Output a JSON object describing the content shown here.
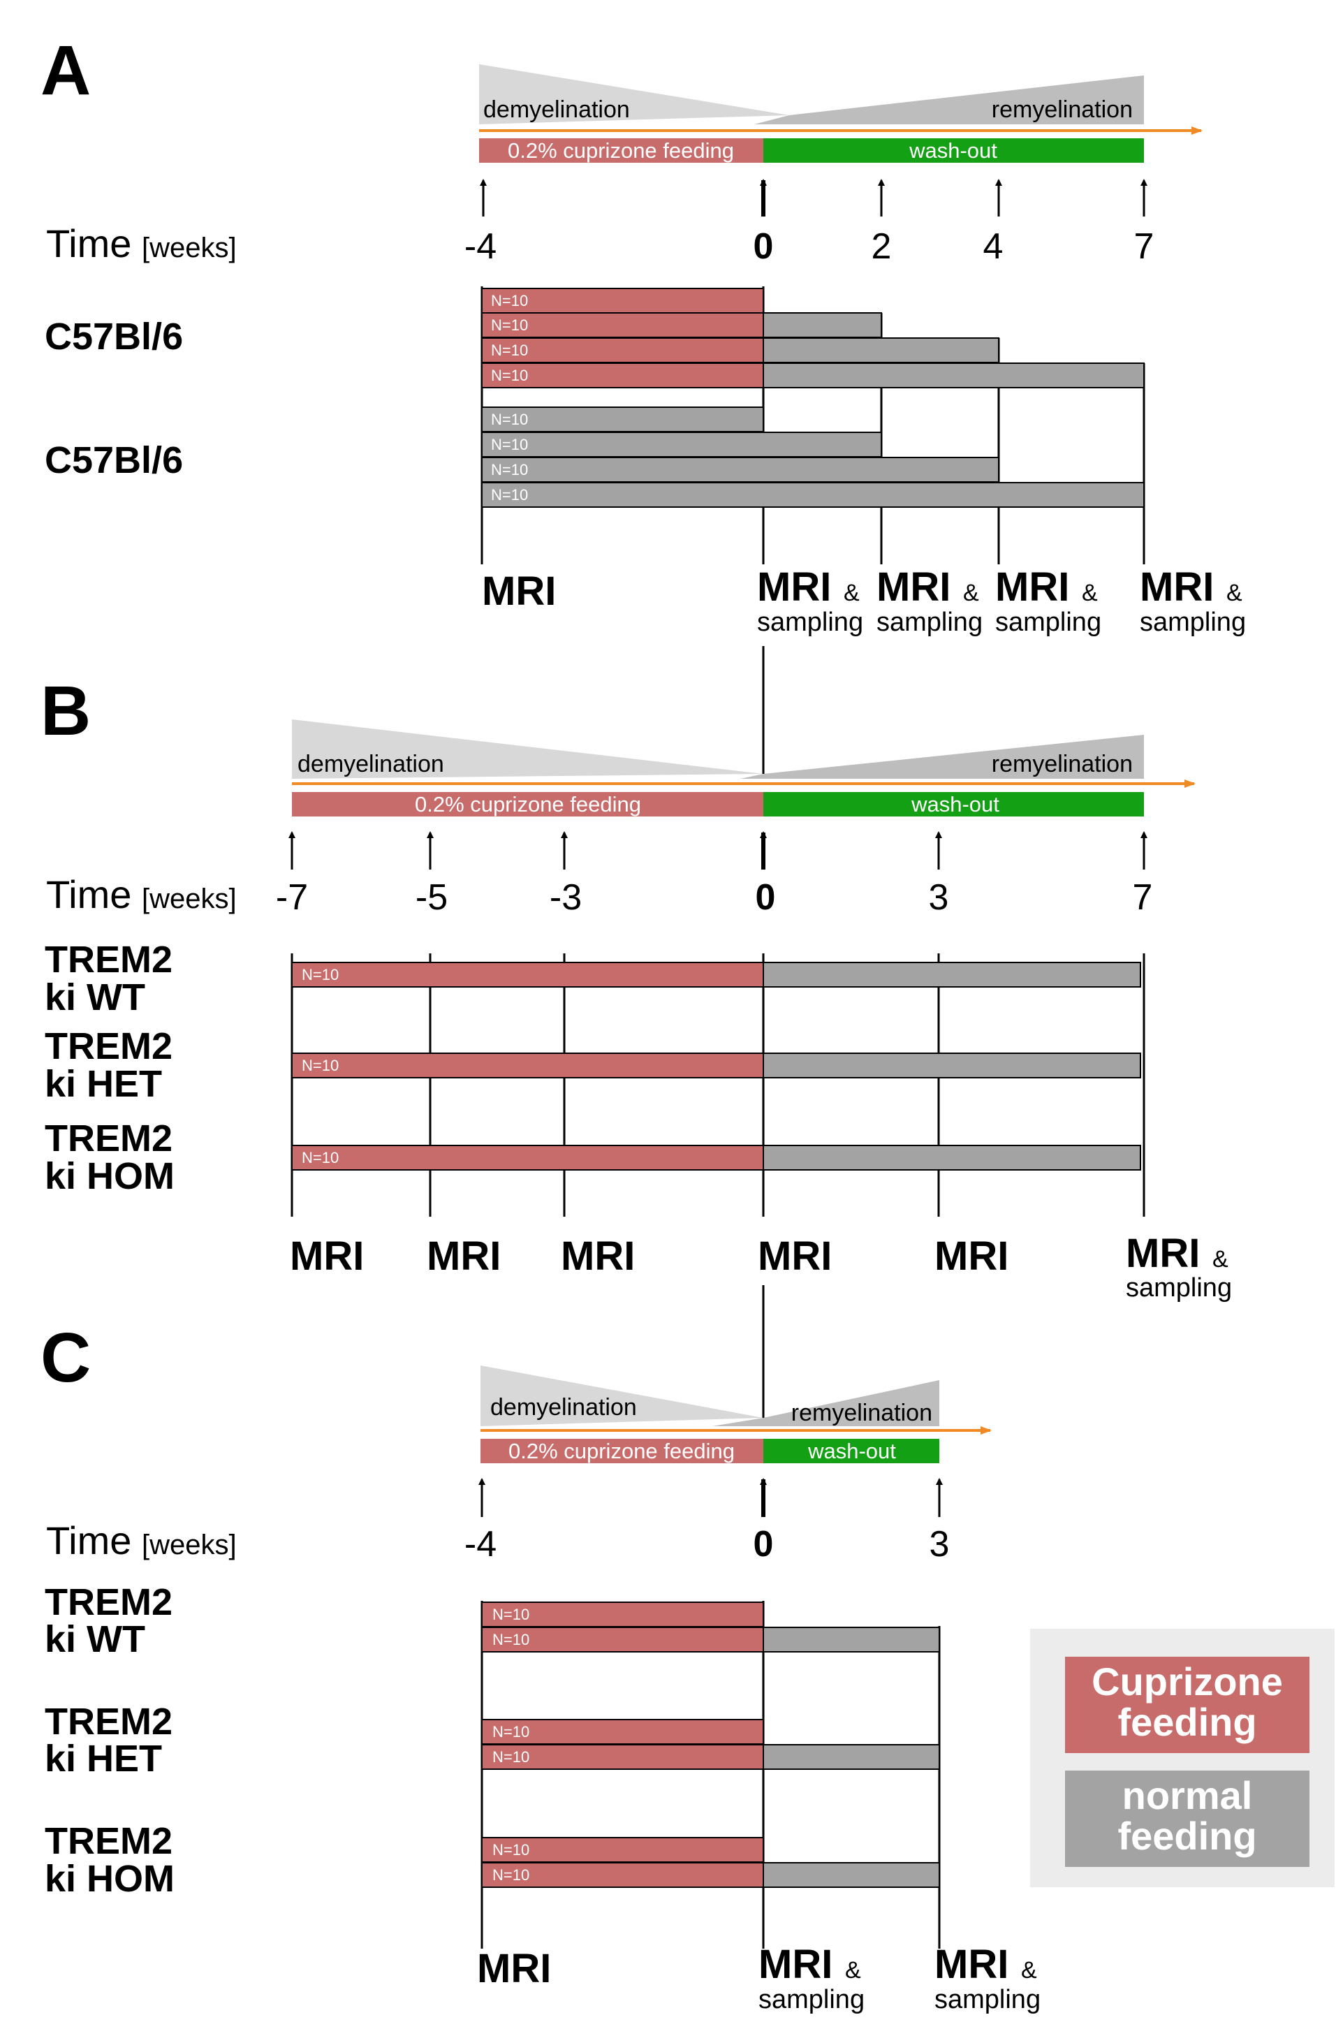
{
  "colors": {
    "cuprizone": "#c86b6b",
    "normal": "#a3a3a3",
    "washout": "#14a014",
    "arrow": "#f08a24",
    "tri_light": "#d8d8d8",
    "tri_dark": "#bdbdbd",
    "legend_bg": "#ececec"
  },
  "time_label": "Time",
  "time_unit": "[weeks]",
  "phase_labels": {
    "demyelination": "demyelination",
    "remyelination": "remyelination",
    "cuprizone": "0.2% cuprizone feeding",
    "washout": "wash-out"
  },
  "n_label": "N=10",
  "mri_label": "MRI",
  "amp_label": "&",
  "sampling_label": "sampling",
  "panels": [
    {
      "letter": "A",
      "ticks": [
        "-4",
        "0",
        "2",
        "4",
        "7"
      ],
      "groups": [
        "C57Bl/6",
        "C57Bl/6"
      ],
      "schedules": [
        {
          "cuprizone_weeks": 4,
          "normal_weeks": 0
        },
        {
          "cuprizone_weeks": 4,
          "normal_weeks": 2
        },
        {
          "cuprizone_weeks": 4,
          "normal_weeks": 4
        },
        {
          "cuprizone_weeks": 4,
          "normal_weeks": 7
        },
        {
          "cuprizone_weeks": 0,
          "normal_weeks": 4
        },
        {
          "cuprizone_weeks": 0,
          "normal_weeks": 6
        },
        {
          "cuprizone_weeks": 0,
          "normal_weeks": 8
        },
        {
          "cuprizone_weeks": 0,
          "normal_weeks": 11
        }
      ],
      "mri_points": [
        {
          "week": "-4",
          "sampling": false
        },
        {
          "week": "0",
          "sampling": true
        },
        {
          "week": "2",
          "sampling": true
        },
        {
          "week": "4",
          "sampling": true
        },
        {
          "week": "7",
          "sampling": true
        }
      ]
    },
    {
      "letter": "B",
      "ticks": [
        "-7",
        "-5",
        "-3",
        "0",
        "3",
        "7"
      ],
      "groups": [
        "TREM2",
        "ki WT",
        "TREM2",
        "ki HET",
        "TREM2",
        "ki HOM"
      ],
      "schedules": [
        {
          "cuprizone_weeks": 7,
          "normal_weeks": 7
        },
        {
          "cuprizone_weeks": 7,
          "normal_weeks": 7
        },
        {
          "cuprizone_weeks": 7,
          "normal_weeks": 7
        }
      ],
      "mri_points": [
        {
          "week": "-7",
          "sampling": false
        },
        {
          "week": "-5",
          "sampling": false
        },
        {
          "week": "-3",
          "sampling": false
        },
        {
          "week": "0",
          "sampling": false
        },
        {
          "week": "3",
          "sampling": false
        },
        {
          "week": "7",
          "sampling": true
        }
      ]
    },
    {
      "letter": "C",
      "ticks": [
        "-4",
        "0",
        "3"
      ],
      "groups": [
        "TREM2",
        "ki WT",
        "TREM2",
        "ki HET",
        "TREM2",
        "ki HOM"
      ],
      "schedules": [
        {
          "cuprizone_weeks": 4,
          "normal_weeks": 0
        },
        {
          "cuprizone_weeks": 4,
          "normal_weeks": 3
        },
        {
          "cuprizone_weeks": 4,
          "normal_weeks": 0
        },
        {
          "cuprizone_weeks": 4,
          "normal_weeks": 3
        },
        {
          "cuprizone_weeks": 4,
          "normal_weeks": 0
        },
        {
          "cuprizone_weeks": 4,
          "normal_weeks": 3
        }
      ],
      "mri_points": [
        {
          "week": "-4",
          "sampling": false
        },
        {
          "week": "0",
          "sampling": true
        },
        {
          "week": "3",
          "sampling": true
        }
      ]
    }
  ],
  "legend": {
    "cuprizone_line1": "Cuprizone",
    "cuprizone_line2": "feeding",
    "normal_line1": "normal",
    "normal_line2": "feeding"
  }
}
